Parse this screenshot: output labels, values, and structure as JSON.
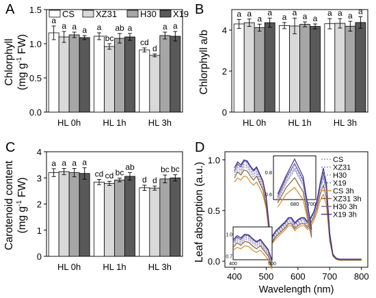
{
  "colors": {
    "CS": "#ffffff",
    "XZ31": "#d9d9d9",
    "H30": "#a6a6a6",
    "X19": "#595959",
    "spec_CS": "#b08fc8",
    "spec_XZ31": "#7b93c5",
    "spec_H30": "#9aa0b0",
    "spec_X19": "#6f7ab0",
    "spec_CS3h": "#d58a25",
    "spec_XZ313h": "#8a5a3a",
    "spec_H303h": "#7060b0",
    "spec_X193h": "#3a2e8a"
  },
  "chart_data": [
    {
      "panel": "A",
      "type": "bar",
      "ylabel_lines": [
        "Chlorphyll",
        "(mg g",
        "-1",
        " FW)"
      ],
      "ylim": [
        0.0,
        1.5
      ],
      "yticks": [
        "0.0",
        "0.5",
        "1.0",
        "1.5"
      ],
      "categories": [
        "HL 0h",
        "HL 1h",
        "HL 3h"
      ],
      "legend": [
        "CS",
        "XZ31",
        "H30",
        "X19"
      ],
      "series": [
        {
          "name": "CS",
          "values": [
            1.16,
            1.11,
            0.91
          ],
          "err": [
            0.1,
            0.05,
            0.03
          ],
          "labels": [
            "a",
            "a",
            "cd"
          ]
        },
        {
          "name": "XZ31",
          "values": [
            1.1,
            0.96,
            0.83
          ],
          "err": [
            0.08,
            0.04,
            0.02
          ],
          "labels": [
            "a",
            "bc",
            "d"
          ]
        },
        {
          "name": "H30",
          "values": [
            1.13,
            1.08,
            1.12
          ],
          "err": [
            0.04,
            0.07,
            0.05
          ],
          "labels": [
            "a",
            "ab",
            "a"
          ]
        },
        {
          "name": "X19",
          "values": [
            1.09,
            1.1,
            1.11
          ],
          "err": [
            0.03,
            0.05,
            0.07
          ],
          "labels": [
            "a",
            "a",
            "a"
          ]
        }
      ]
    },
    {
      "panel": "B",
      "type": "bar",
      "ylabel_lines": [
        "Chlorphyll a/b"
      ],
      "ylim": [
        0,
        5
      ],
      "yticks": [
        "0",
        "2",
        "4"
      ],
      "categories": [
        "HL 0h",
        "HL 1h",
        "HL 3h"
      ],
      "series": [
        {
          "name": "CS",
          "values": [
            4.3,
            4.22,
            4.31
          ],
          "err": [
            0.22,
            0.15,
            0.25
          ],
          "labels": [
            "a",
            "a",
            "a"
          ]
        },
        {
          "name": "XZ31",
          "values": [
            4.36,
            4.2,
            4.33
          ],
          "err": [
            0.18,
            0.38,
            0.23
          ],
          "labels": [
            "a",
            "a",
            "a"
          ]
        },
        {
          "name": "H30",
          "values": [
            4.12,
            4.28,
            4.19
          ],
          "err": [
            0.17,
            0.12,
            0.24
          ],
          "labels": [
            "a",
            "a",
            "a"
          ]
        },
        {
          "name": "X19",
          "values": [
            4.36,
            4.18,
            4.37
          ],
          "err": [
            0.22,
            0.12,
            0.28
          ],
          "labels": [
            "a",
            "a",
            "a"
          ]
        }
      ]
    },
    {
      "panel": "C",
      "type": "bar",
      "ylabel_lines": [
        "Carotenoid content",
        "(mg g",
        "-1",
        " FW)"
      ],
      "ylim": [
        0,
        4
      ],
      "yticks": [
        "0",
        "1",
        "2",
        "3",
        "4"
      ],
      "categories": [
        "HL 0h",
        "HL 1h",
        "HL 3h"
      ],
      "series": [
        {
          "name": "CS",
          "values": [
            3.2,
            2.84,
            2.62
          ],
          "err": [
            0.15,
            0.1,
            0.1
          ],
          "labels": [
            "a",
            "cd",
            "d"
          ]
        },
        {
          "name": "XZ31",
          "values": [
            3.24,
            2.79,
            2.61
          ],
          "err": [
            0.12,
            0.08,
            0.08
          ],
          "labels": [
            "a",
            "cd",
            "d"
          ]
        },
        {
          "name": "H30",
          "values": [
            3.2,
            2.92,
            2.96
          ],
          "err": [
            0.16,
            0.07,
            0.15
          ],
          "labels": [
            "a",
            "bc",
            "bc"
          ]
        },
        {
          "name": "X19",
          "values": [
            3.17,
            3.06,
            3.0
          ],
          "err": [
            0.22,
            0.14,
            0.12
          ],
          "labels": [
            "a",
            "ab",
            "bc"
          ]
        }
      ]
    },
    {
      "panel": "D",
      "type": "line",
      "xlabel": "Wavelength (nm)",
      "ylabel": "Leaf absorption (a.u.)",
      "xlim": [
        370,
        820
      ],
      "ylim": [
        -0.06,
        1.08
      ],
      "xticks": [
        "400",
        "500",
        "600",
        "700",
        "800"
      ],
      "yticks": [
        "0.0",
        "0.5",
        "1.0"
      ],
      "legend": [
        "CS",
        "XZ31",
        "H30",
        "X19",
        "CS 3h",
        "XZ31 3h",
        "H30 3h",
        "X19 3h"
      ],
      "inset_main": {
        "xlim": [
          655,
          705
        ],
        "ylim": [
          0.55,
          0.95
        ],
        "xticks": [
          "680",
          "700"
        ],
        "yticks": [
          "0.6",
          "0.8"
        ]
      },
      "inset_small": {
        "xlim": [
          400,
          500
        ],
        "ylim": [
          0.65,
          1.1
        ],
        "xticks": [
          "400",
          "500"
        ],
        "yticks": [
          "0.7",
          "1.0"
        ]
      },
      "x": [
        400,
        410,
        420,
        430,
        440,
        450,
        460,
        470,
        480,
        490,
        500,
        510,
        520,
        530,
        540,
        550,
        560,
        570,
        580,
        590,
        600,
        610,
        620,
        630,
        640,
        650,
        660,
        670,
        680,
        690,
        700,
        710,
        720,
        730,
        740,
        750,
        760,
        770,
        780,
        790,
        800
      ],
      "series": [
        {
          "name": "CS",
          "dash": true,
          "values": [
            0.88,
            0.93,
            0.9,
            0.96,
            0.95,
            0.9,
            0.86,
            0.89,
            0.82,
            0.75,
            0.6,
            0.3,
            0.22,
            0.27,
            0.3,
            0.33,
            0.36,
            0.4,
            0.4,
            0.35,
            0.38,
            0.4,
            0.4,
            0.36,
            0.4,
            0.46,
            0.56,
            0.72,
            0.84,
            0.7,
            0.25,
            0.06,
            0.03,
            0.02,
            0.02,
            0.02,
            0.02,
            0.02,
            0.02,
            0.02,
            0.02
          ]
        },
        {
          "name": "XZ31",
          "dash": true,
          "values": [
            0.85,
            0.9,
            0.87,
            0.93,
            0.92,
            0.87,
            0.83,
            0.86,
            0.79,
            0.72,
            0.57,
            0.28,
            0.2,
            0.25,
            0.28,
            0.31,
            0.34,
            0.38,
            0.38,
            0.33,
            0.36,
            0.38,
            0.38,
            0.34,
            0.38,
            0.44,
            0.54,
            0.7,
            0.82,
            0.68,
            0.22,
            0.05,
            0.02,
            0.01,
            0.01,
            0.01,
            0.01,
            0.01,
            0.01,
            0.01,
            0.01
          ]
        },
        {
          "name": "H30",
          "dash": true,
          "values": [
            0.87,
            0.92,
            0.89,
            0.95,
            0.94,
            0.89,
            0.85,
            0.88,
            0.81,
            0.74,
            0.59,
            0.29,
            0.21,
            0.26,
            0.29,
            0.32,
            0.35,
            0.39,
            0.39,
            0.34,
            0.37,
            0.39,
            0.39,
            0.35,
            0.39,
            0.45,
            0.55,
            0.71,
            0.83,
            0.69,
            0.24,
            0.06,
            0.03,
            0.02,
            0.02,
            0.02,
            0.02,
            0.02,
            0.02,
            0.02,
            0.02
          ]
        },
        {
          "name": "X19",
          "dash": true,
          "values": [
            0.9,
            0.95,
            0.92,
            0.98,
            0.97,
            0.92,
            0.88,
            0.91,
            0.84,
            0.77,
            0.62,
            0.31,
            0.23,
            0.28,
            0.31,
            0.34,
            0.37,
            0.41,
            0.41,
            0.36,
            0.39,
            0.41,
            0.41,
            0.37,
            0.41,
            0.47,
            0.57,
            0.74,
            0.86,
            0.72,
            0.26,
            0.07,
            0.03,
            0.02,
            0.02,
            0.02,
            0.02,
            0.02,
            0.02,
            0.02,
            0.02
          ]
        },
        {
          "name": "CS 3h",
          "dash": false,
          "values": [
            0.78,
            0.82,
            0.8,
            0.84,
            0.83,
            0.78,
            0.75,
            0.78,
            0.72,
            0.65,
            0.52,
            0.25,
            0.18,
            0.22,
            0.25,
            0.28,
            0.31,
            0.35,
            0.35,
            0.3,
            0.33,
            0.35,
            0.35,
            0.31,
            0.34,
            0.4,
            0.48,
            0.6,
            0.66,
            0.55,
            0.2,
            0.05,
            0.02,
            0.01,
            0.01,
            0.01,
            0.01,
            0.01,
            0.01,
            0.01,
            0.01
          ]
        },
        {
          "name": "XZ31 3h",
          "dash": false,
          "values": [
            0.82,
            0.88,
            0.85,
            0.9,
            0.89,
            0.84,
            0.8,
            0.84,
            0.77,
            0.7,
            0.55,
            0.27,
            0.19,
            0.24,
            0.27,
            0.3,
            0.33,
            0.37,
            0.37,
            0.32,
            0.35,
            0.37,
            0.37,
            0.33,
            0.37,
            0.43,
            0.52,
            0.66,
            0.75,
            0.62,
            0.21,
            0.05,
            0.02,
            0.01,
            0.01,
            0.01,
            0.01,
            0.01,
            0.01,
            0.01,
            0.01
          ]
        },
        {
          "name": "H30 3h",
          "dash": false,
          "values": [
            0.89,
            0.96,
            0.93,
            0.99,
            0.98,
            0.93,
            0.89,
            0.92,
            0.85,
            0.78,
            0.63,
            0.32,
            0.24,
            0.29,
            0.32,
            0.35,
            0.38,
            0.42,
            0.42,
            0.37,
            0.4,
            0.42,
            0.42,
            0.38,
            0.42,
            0.48,
            0.58,
            0.75,
            0.88,
            0.73,
            0.27,
            0.07,
            0.03,
            0.02,
            0.02,
            0.02,
            0.02,
            0.02,
            0.02,
            0.02,
            0.02
          ]
        },
        {
          "name": "X19 3h",
          "dash": false,
          "values": [
            0.92,
            0.98,
            0.95,
            1.0,
            0.99,
            0.94,
            0.9,
            0.93,
            0.86,
            0.79,
            0.64,
            0.33,
            0.25,
            0.3,
            0.33,
            0.36,
            0.39,
            0.43,
            0.43,
            0.38,
            0.41,
            0.43,
            0.43,
            0.39,
            0.43,
            0.49,
            0.6,
            0.77,
            0.92,
            0.76,
            0.28,
            0.07,
            0.03,
            0.02,
            0.02,
            0.02,
            0.02,
            0.02,
            0.02,
            0.02,
            0.02
          ]
        }
      ]
    }
  ]
}
